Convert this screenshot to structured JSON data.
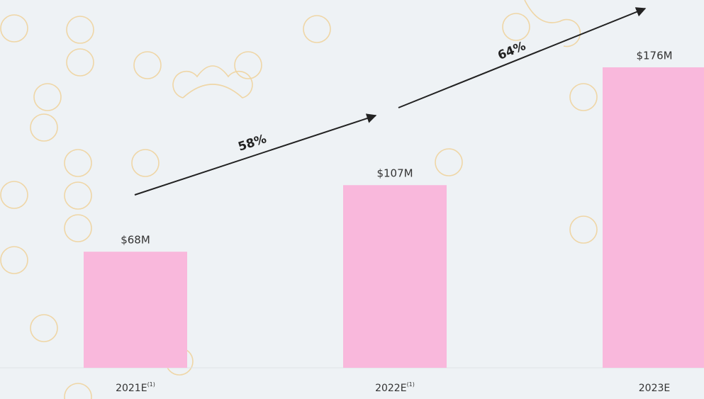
{
  "chart_data": {
    "type": "bar",
    "categories": [
      "2021E",
      "2022E",
      "2023E"
    ],
    "category_footnotes": [
      "(1)",
      "(1)",
      null
    ],
    "values": [
      68,
      107,
      176
    ],
    "value_labels": [
      "$68M",
      "$107M",
      "$176M"
    ],
    "color": "#f9b8dc",
    "growth_labels": [
      "58%",
      "64%"
    ]
  }
}
